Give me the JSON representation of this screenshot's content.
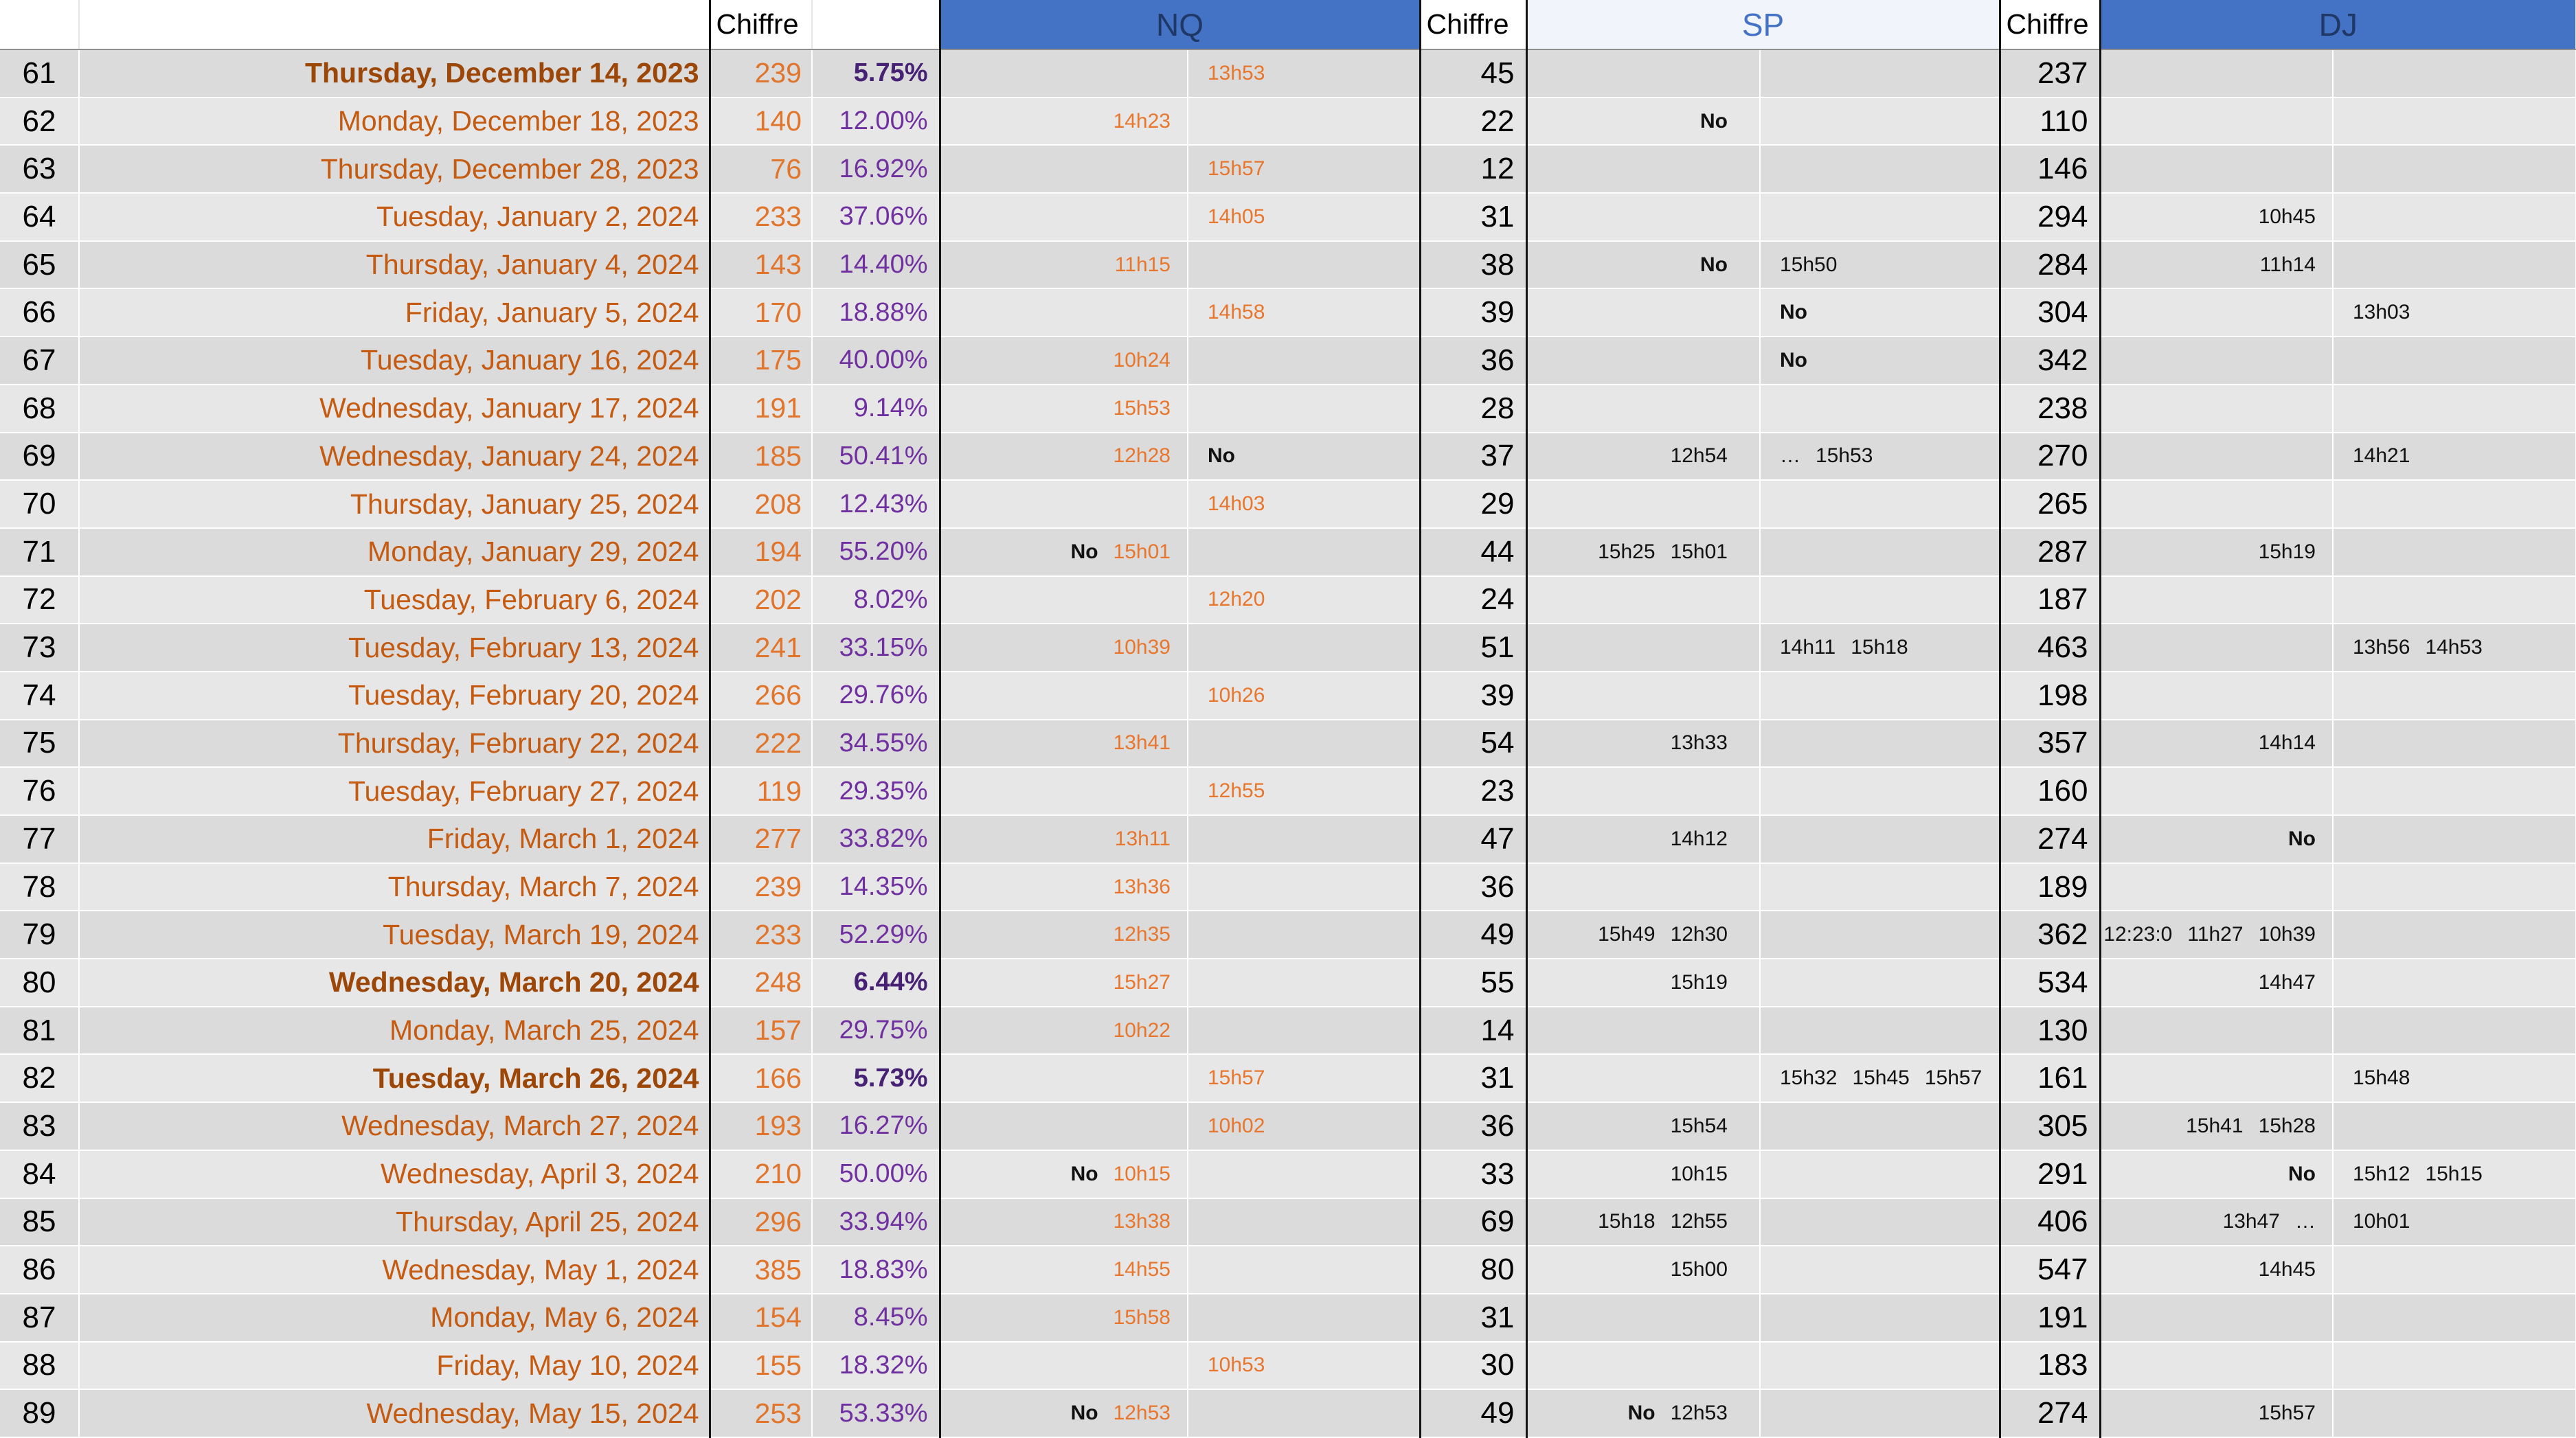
{
  "colors": {
    "band_blue": "#4472C4",
    "band_blue_text": "#203865",
    "sp_header_text": "#4472C4",
    "date_orange": "#C55A11",
    "date_orange_bold": "#9C4708",
    "chiffre_orange": "#E0752B",
    "time_orange": "#E8762D",
    "pct_purple": "#7030A0",
    "pct_purple_bold": "#472173",
    "row_band_a": "#dbdbdb",
    "row_band_b": "#e7e7e7"
  },
  "header": {
    "chiffre1": "Chiffre",
    "nq": "NQ",
    "chiffre2": "Chiffre",
    "sp": "SP",
    "chiffre3": "Chiffre",
    "dj": "DJ"
  },
  "rows": [
    {
      "num": "61",
      "date": "Thursday, December 14, 2023",
      "bold": true,
      "chiffre": "239",
      "pct": "5.75%",
      "nq1": [],
      "nq2": [
        "13h53"
      ],
      "sp_chiffre": "45",
      "sp1": [],
      "sp2": [],
      "dj_chiffre": "237",
      "dj1": [],
      "dj2": []
    },
    {
      "num": "62",
      "date": "Monday, December 18, 2023",
      "chiffre": "140",
      "pct": "12.00%",
      "nq1": [
        "14h23"
      ],
      "nq2": [],
      "sp_chiffre": "22",
      "sp1": [
        "No"
      ],
      "sp2": [],
      "dj_chiffre": "110",
      "dj1": [],
      "dj2": []
    },
    {
      "num": "63",
      "date": "Thursday, December 28, 2023",
      "chiffre": "76",
      "pct": "16.92%",
      "nq1": [],
      "nq2": [
        "15h57"
      ],
      "sp_chiffre": "12",
      "sp1": [],
      "sp2": [],
      "dj_chiffre": "146",
      "dj1": [],
      "dj2": []
    },
    {
      "num": "64",
      "date": "Tuesday, January 2, 2024",
      "chiffre": "233",
      "pct": "37.06%",
      "nq1": [],
      "nq2": [
        "14h05"
      ],
      "sp_chiffre": "31",
      "sp1": [],
      "sp2": [],
      "dj_chiffre": "294",
      "dj1": [
        "10h45"
      ],
      "dj2": []
    },
    {
      "num": "65",
      "date": "Thursday, January 4, 2024",
      "chiffre": "143",
      "pct": "14.40%",
      "nq1": [
        "11h15"
      ],
      "nq2": [],
      "sp_chiffre": "38",
      "sp1": [
        "No"
      ],
      "sp2": [
        "15h50"
      ],
      "dj_chiffre": "284",
      "dj1": [
        "11h14"
      ],
      "dj2": []
    },
    {
      "num": "66",
      "date": "Friday, January 5, 2024",
      "chiffre": "170",
      "pct": "18.88%",
      "nq1": [],
      "nq2": [
        "14h58"
      ],
      "sp_chiffre": "39",
      "sp1": [],
      "sp2": [
        "No"
      ],
      "dj_chiffre": "304",
      "dj1": [],
      "dj2": [
        "13h03"
      ]
    },
    {
      "num": "67",
      "date": "Tuesday, January 16, 2024",
      "chiffre": "175",
      "pct": "40.00%",
      "nq1": [
        "10h24"
      ],
      "nq2": [],
      "sp_chiffre": "36",
      "sp1": [],
      "sp2": [
        "No"
      ],
      "dj_chiffre": "342",
      "dj1": [],
      "dj2": []
    },
    {
      "num": "68",
      "date": "Wednesday, January 17, 2024",
      "chiffre": "191",
      "pct": "9.14%",
      "nq1": [
        "15h53"
      ],
      "nq2": [],
      "sp_chiffre": "28",
      "sp1": [],
      "sp2": [],
      "dj_chiffre": "238",
      "dj1": [],
      "dj2": []
    },
    {
      "num": "69",
      "date": "Wednesday, January 24, 2024",
      "chiffre": "185",
      "pct": "50.41%",
      "nq1": [
        "12h28"
      ],
      "nq2": [
        "No"
      ],
      "sp_chiffre": "37",
      "sp1": [
        "12h54"
      ],
      "sp2": [
        "…",
        "15h53"
      ],
      "dj_chiffre": "270",
      "dj1": [],
      "dj2": [
        "14h21"
      ]
    },
    {
      "num": "70",
      "date": "Thursday, January 25, 2024",
      "chiffre": "208",
      "pct": "12.43%",
      "nq1": [],
      "nq2": [
        "14h03"
      ],
      "sp_chiffre": "29",
      "sp1": [],
      "sp2": [],
      "dj_chiffre": "265",
      "dj1": [],
      "dj2": []
    },
    {
      "num": "71",
      "date": "Monday, January 29, 2024",
      "chiffre": "194",
      "pct": "55.20%",
      "nq1": [
        "No",
        "15h01"
      ],
      "nq2": [],
      "sp_chiffre": "44",
      "sp1": [
        "15h25",
        "15h01"
      ],
      "sp2": [],
      "dj_chiffre": "287",
      "dj1": [
        "15h19"
      ],
      "dj2": []
    },
    {
      "num": "72",
      "date": "Tuesday, February 6, 2024",
      "chiffre": "202",
      "pct": "8.02%",
      "nq1": [],
      "nq2": [
        "12h20"
      ],
      "sp_chiffre": "24",
      "sp1": [],
      "sp2": [],
      "dj_chiffre": "187",
      "dj1": [],
      "dj2": []
    },
    {
      "num": "73",
      "date": "Tuesday, February 13, 2024",
      "chiffre": "241",
      "pct": "33.15%",
      "nq1": [
        "10h39"
      ],
      "nq2": [],
      "sp_chiffre": "51",
      "sp1": [],
      "sp2": [
        "14h11",
        "15h18"
      ],
      "dj_chiffre": "463",
      "dj1": [],
      "dj2": [
        "13h56",
        "14h53"
      ]
    },
    {
      "num": "74",
      "date": "Tuesday, February 20, 2024",
      "chiffre": "266",
      "pct": "29.76%",
      "nq1": [],
      "nq2": [
        "10h26"
      ],
      "sp_chiffre": "39",
      "sp1": [],
      "sp2": [],
      "dj_chiffre": "198",
      "dj1": [],
      "dj2": []
    },
    {
      "num": "75",
      "date": "Thursday, February 22, 2024",
      "chiffre": "222",
      "pct": "34.55%",
      "nq1": [
        "13h41"
      ],
      "nq2": [],
      "sp_chiffre": "54",
      "sp1": [
        "13h33"
      ],
      "sp2": [],
      "dj_chiffre": "357",
      "dj1": [
        "14h14"
      ],
      "dj2": []
    },
    {
      "num": "76",
      "date": "Tuesday, February 27, 2024",
      "chiffre": "119",
      "pct": "29.35%",
      "nq1": [],
      "nq2": [
        "12h55"
      ],
      "sp_chiffre": "23",
      "sp1": [],
      "sp2": [],
      "dj_chiffre": "160",
      "dj1": [],
      "dj2": []
    },
    {
      "num": "77",
      "date": "Friday, March 1, 2024",
      "chiffre": "277",
      "pct": "33.82%",
      "nq1": [
        "13h11"
      ],
      "nq2": [],
      "sp_chiffre": "47",
      "sp1": [
        "14h12"
      ],
      "sp2": [],
      "dj_chiffre": "274",
      "dj1": [
        "No"
      ],
      "dj2": []
    },
    {
      "num": "78",
      "date": "Thursday, March 7, 2024",
      "chiffre": "239",
      "pct": "14.35%",
      "nq1": [
        "13h36"
      ],
      "nq2": [],
      "sp_chiffre": "36",
      "sp1": [],
      "sp2": [],
      "dj_chiffre": "189",
      "dj1": [],
      "dj2": []
    },
    {
      "num": "79",
      "date": "Tuesday, March 19, 2024",
      "chiffre": "233",
      "pct": "52.29%",
      "nq1": [
        "12h35"
      ],
      "nq2": [],
      "sp_chiffre": "49",
      "sp1": [
        "15h49",
        "12h30"
      ],
      "sp2": [],
      "dj_chiffre": "362",
      "dj1": [
        "12:23:0",
        "11h27",
        "10h39"
      ],
      "dj2": []
    },
    {
      "num": "80",
      "date": "Wednesday, March 20, 2024",
      "bold": true,
      "chiffre": "248",
      "pct": "6.44%",
      "nq1": [
        "15h27"
      ],
      "nq2": [],
      "sp_chiffre": "55",
      "sp1": [
        "15h19"
      ],
      "sp2": [],
      "dj_chiffre": "534",
      "dj1": [
        "14h47"
      ],
      "dj2": []
    },
    {
      "num": "81",
      "date": "Monday, March 25, 2024",
      "chiffre": "157",
      "pct": "29.75%",
      "nq1": [
        "10h22"
      ],
      "nq2": [],
      "sp_chiffre": "14",
      "sp1": [],
      "sp2": [],
      "dj_chiffre": "130",
      "dj1": [],
      "dj2": []
    },
    {
      "num": "82",
      "date": "Tuesday, March 26, 2024",
      "bold": true,
      "chiffre": "166",
      "pct": "5.73%",
      "nq1": [],
      "nq2": [
        "15h57"
      ],
      "sp_chiffre": "31",
      "sp1": [],
      "sp2": [
        "15h32",
        "15h45",
        "15h57"
      ],
      "dj_chiffre": "161",
      "dj1": [],
      "dj2": [
        "15h48"
      ]
    },
    {
      "num": "83",
      "date": "Wednesday, March 27, 2024",
      "chiffre": "193",
      "pct": "16.27%",
      "nq1": [],
      "nq2": [
        "10h02"
      ],
      "sp_chiffre": "36",
      "sp1": [
        "15h54"
      ],
      "sp2": [],
      "dj_chiffre": "305",
      "dj1": [
        "15h41",
        "15h28"
      ],
      "dj2": []
    },
    {
      "num": "84",
      "date": "Wednesday, April 3, 2024",
      "chiffre": "210",
      "pct": "50.00%",
      "nq1": [
        "No",
        "10h15"
      ],
      "nq2": [],
      "sp_chiffre": "33",
      "sp1": [
        "10h15"
      ],
      "sp2": [],
      "dj_chiffre": "291",
      "dj1": [
        "No"
      ],
      "dj2": [
        "15h12",
        "15h15"
      ]
    },
    {
      "num": "85",
      "date": "Thursday, April 25, 2024",
      "chiffre": "296",
      "pct": "33.94%",
      "nq1": [
        "13h38"
      ],
      "nq2": [],
      "sp_chiffre": "69",
      "sp1": [
        "15h18",
        "12h55"
      ],
      "sp2": [],
      "dj_chiffre": "406",
      "dj1": [
        "13h47",
        "…"
      ],
      "dj2": [
        "10h01"
      ]
    },
    {
      "num": "86",
      "date": "Wednesday, May 1, 2024",
      "chiffre": "385",
      "pct": "18.83%",
      "nq1": [
        "14h55"
      ],
      "nq2": [],
      "sp_chiffre": "80",
      "sp1": [
        "15h00"
      ],
      "sp2": [],
      "dj_chiffre": "547",
      "dj1": [
        "14h45"
      ],
      "dj2": []
    },
    {
      "num": "87",
      "date": "Monday, May 6, 2024",
      "chiffre": "154",
      "pct": "8.45%",
      "nq1": [
        "15h58"
      ],
      "nq2": [],
      "sp_chiffre": "31",
      "sp1": [],
      "sp2": [],
      "dj_chiffre": "191",
      "dj1": [],
      "dj2": []
    },
    {
      "num": "88",
      "date": "Friday, May 10, 2024",
      "chiffre": "155",
      "pct": "18.32%",
      "nq1": [],
      "nq2": [
        "10h53"
      ],
      "sp_chiffre": "30",
      "sp1": [],
      "sp2": [],
      "dj_chiffre": "183",
      "dj1": [],
      "dj2": []
    },
    {
      "num": "89",
      "date": "Wednesday, May 15, 2024",
      "chiffre": "253",
      "pct": "53.33%",
      "nq1": [
        "No",
        "12h53"
      ],
      "nq2": [],
      "sp_chiffre": "49",
      "sp1": [
        "No",
        "12h53"
      ],
      "sp2": [],
      "dj_chiffre": "274",
      "dj1": [
        "15h57"
      ],
      "dj2": []
    }
  ]
}
